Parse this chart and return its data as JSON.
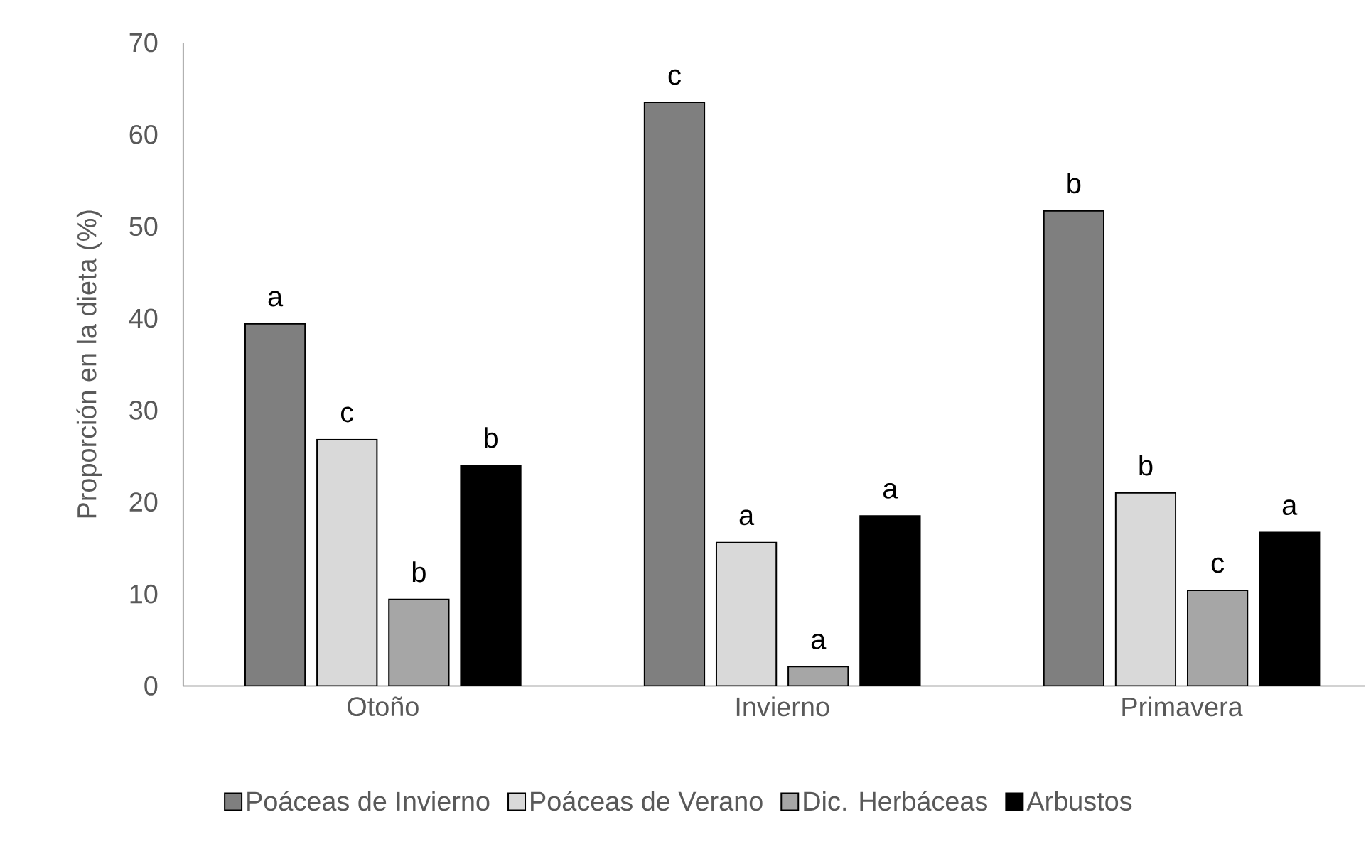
{
  "chart_data": {
    "type": "bar",
    "ylabel": "Proporción en la dieta (%)",
    "categories": [
      "Otoño",
      "Invierno",
      "Primavera"
    ],
    "series": [
      {
        "name": "Poáceas de Invierno",
        "color": "#7f7f7f",
        "values": [
          39.4,
          63.5,
          51.7
        ]
      },
      {
        "name": "Poáceas de Verano",
        "color": "#d9d9d9",
        "values": [
          26.8,
          15.6,
          21.0
        ]
      },
      {
        "name": "Dic. Herbáceas",
        "color": "#a6a6a6",
        "values": [
          9.4,
          2.1,
          10.4
        ]
      },
      {
        "name": "Arbustos",
        "color": "#000000",
        "values": [
          24.0,
          18.5,
          16.7
        ]
      }
    ],
    "ylim": [
      0,
      70
    ],
    "yticks": [
      0,
      10,
      20,
      30,
      40,
      50,
      60,
      70
    ],
    "legend": "bottom",
    "annotations": [
      "a",
      "c",
      "b",
      "b",
      "c",
      "a",
      "a",
      "a",
      "b",
      "b",
      "c",
      "a"
    ]
  }
}
